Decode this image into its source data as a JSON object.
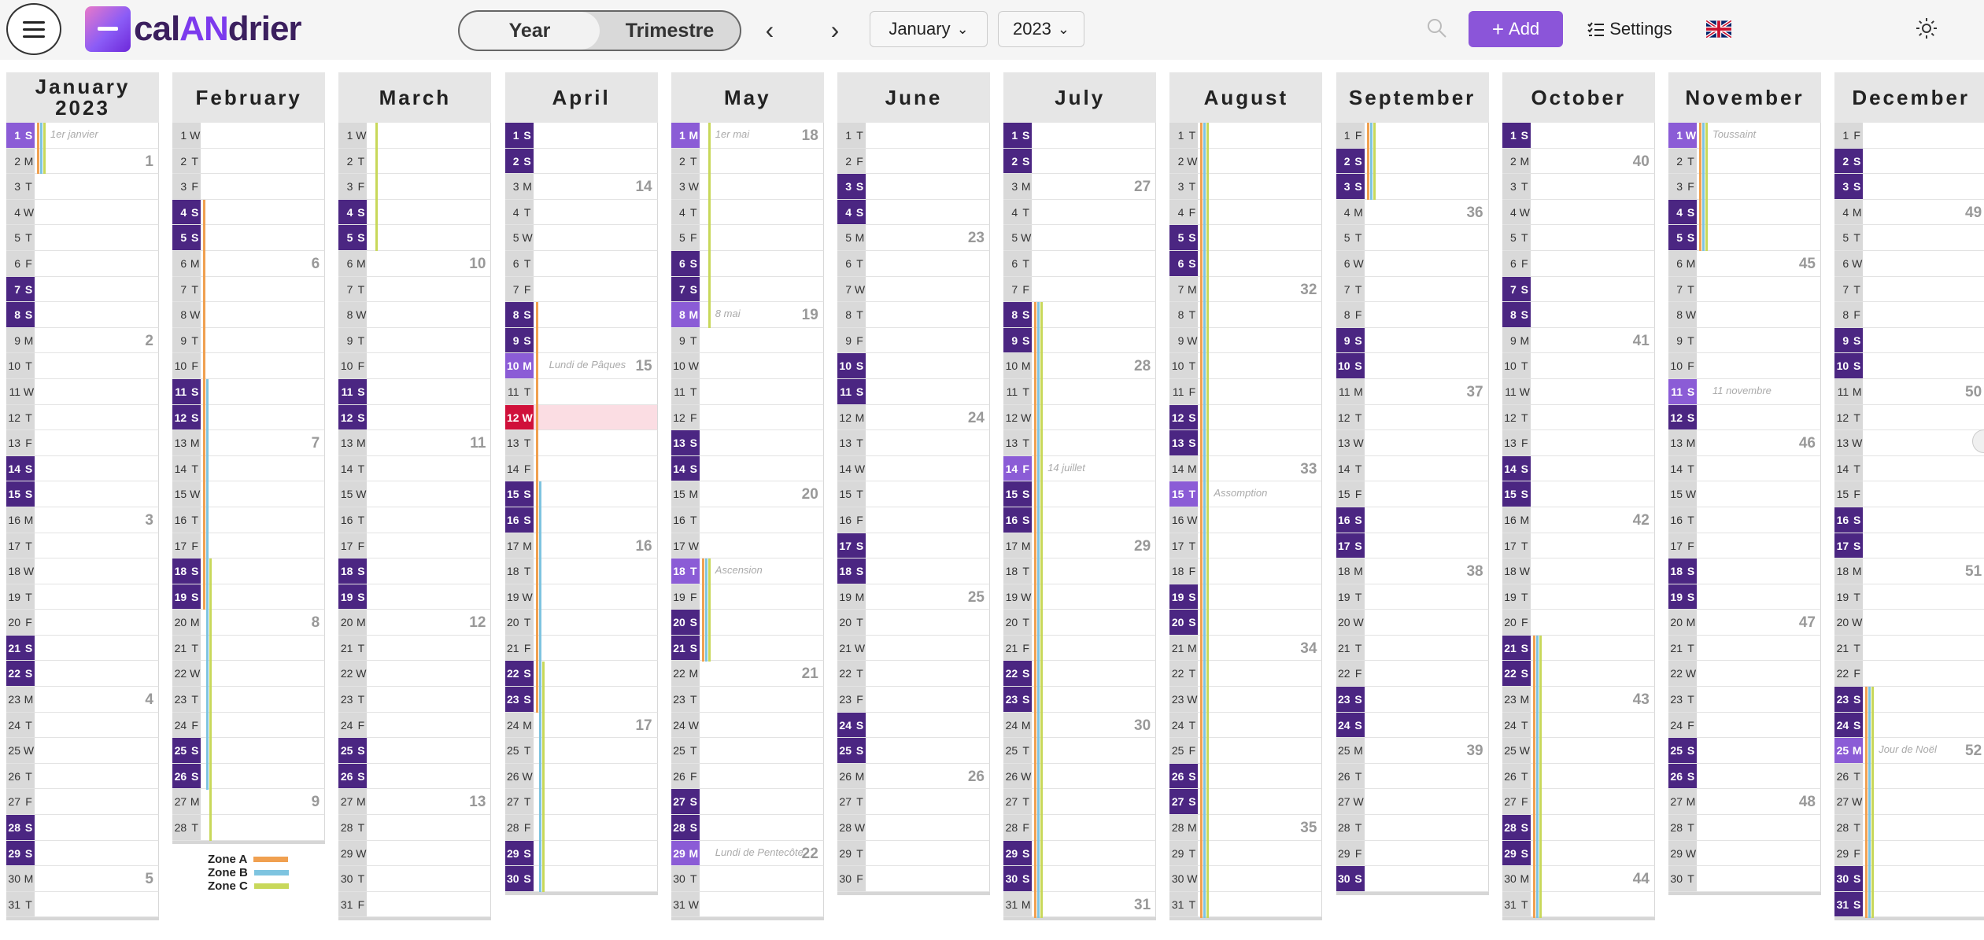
{
  "header": {
    "logo": {
      "part1": "cal",
      "part2": "AN",
      "part3": "drier"
    },
    "view_toggle": {
      "year": "Year",
      "quarter": "Trimestre",
      "active": "year"
    },
    "prev_arrow": "‹",
    "next_arrow": "›",
    "month_select": "January",
    "year_select": "2023",
    "add_label": "Add",
    "settings_label": "Settings",
    "language": "uk-flag-icon",
    "theme": "sun-icon"
  },
  "colors": {
    "weekend": "#4b2682",
    "holiday": "#8b5cd6",
    "today": "#d0103a",
    "zone_a": "#f0a050",
    "zone_b": "#7ec4e0",
    "zone_c": "#c8d85a"
  },
  "calendar": {
    "year": 2023,
    "today": {
      "month": 4,
      "day": 12
    },
    "months": [
      {
        "name": "January",
        "subtitle": "2023",
        "first_dow": 0,
        "days": 31
      },
      {
        "name": "February",
        "subtitle": "",
        "first_dow": 3,
        "days": 28
      },
      {
        "name": "March",
        "subtitle": "",
        "first_dow": 3,
        "days": 31
      },
      {
        "name": "April",
        "subtitle": "",
        "first_dow": 6,
        "days": 30
      },
      {
        "name": "May",
        "subtitle": "",
        "first_dow": 1,
        "days": 31
      },
      {
        "name": "June",
        "subtitle": "",
        "first_dow": 4,
        "days": 30
      },
      {
        "name": "July",
        "subtitle": "",
        "first_dow": 6,
        "days": 31
      },
      {
        "name": "August",
        "subtitle": "",
        "first_dow": 2,
        "days": 31
      },
      {
        "name": "September",
        "subtitle": "",
        "first_dow": 5,
        "days": 30
      },
      {
        "name": "October",
        "subtitle": "",
        "first_dow": 0,
        "days": 31
      },
      {
        "name": "November",
        "subtitle": "",
        "first_dow": 3,
        "days": 30
      },
      {
        "name": "December",
        "subtitle": "",
        "first_dow": 5,
        "days": 31
      }
    ],
    "day_letters": [
      "S",
      "M",
      "T",
      "W",
      "T",
      "F",
      "S"
    ],
    "holidays": [
      {
        "month": 1,
        "day": 1,
        "name": "1er janvier"
      },
      {
        "month": 4,
        "day": 10,
        "name": "Lundi de Pâques"
      },
      {
        "month": 5,
        "day": 1,
        "name": "1er mai"
      },
      {
        "month": 5,
        "day": 8,
        "name": "8 mai"
      },
      {
        "month": 5,
        "day": 18,
        "name": "Ascension"
      },
      {
        "month": 5,
        "day": 29,
        "name": "Lundi de Pentecôte"
      },
      {
        "month": 7,
        "day": 14,
        "name": "14 juillet"
      },
      {
        "month": 8,
        "day": 15,
        "name": "Assomption"
      },
      {
        "month": 11,
        "day": 1,
        "name": "Toussaint"
      },
      {
        "month": 11,
        "day": 11,
        "name": "11 novembre"
      },
      {
        "month": 12,
        "day": 25,
        "name": "Jour de Noël"
      }
    ],
    "school_holidays": [
      {
        "zone": "A",
        "from": [
          1,
          1
        ],
        "to": [
          1,
          2
        ]
      },
      {
        "zone": "B",
        "from": [
          1,
          1
        ],
        "to": [
          1,
          2
        ]
      },
      {
        "zone": "C",
        "from": [
          1,
          1
        ],
        "to": [
          1,
          2
        ]
      },
      {
        "zone": "A",
        "from": [
          2,
          4
        ],
        "to": [
          2,
          19
        ]
      },
      {
        "zone": "B",
        "from": [
          2,
          11
        ],
        "to": [
          2,
          26
        ]
      },
      {
        "zone": "C",
        "from": [
          2,
          18
        ],
        "to": [
          3,
          5
        ]
      },
      {
        "zone": "A",
        "from": [
          4,
          8
        ],
        "to": [
          4,
          23
        ]
      },
      {
        "zone": "B",
        "from": [
          4,
          15
        ],
        "to": [
          4,
          30
        ]
      },
      {
        "zone": "C",
        "from": [
          4,
          22
        ],
        "to": [
          5,
          8
        ]
      },
      {
        "zone": "A",
        "from": [
          5,
          18
        ],
        "to": [
          5,
          21
        ]
      },
      {
        "zone": "B",
        "from": [
          5,
          18
        ],
        "to": [
          5,
          21
        ]
      },
      {
        "zone": "C",
        "from": [
          5,
          18
        ],
        "to": [
          5,
          21
        ]
      },
      {
        "zone": "A",
        "from": [
          7,
          8
        ],
        "to": [
          9,
          3
        ]
      },
      {
        "zone": "B",
        "from": [
          7,
          8
        ],
        "to": [
          9,
          3
        ]
      },
      {
        "zone": "C",
        "from": [
          7,
          8
        ],
        "to": [
          9,
          3
        ]
      },
      {
        "zone": "A",
        "from": [
          10,
          21
        ],
        "to": [
          11,
          5
        ]
      },
      {
        "zone": "B",
        "from": [
          10,
          21
        ],
        "to": [
          11,
          5
        ]
      },
      {
        "zone": "C",
        "from": [
          10,
          21
        ],
        "to": [
          11,
          5
        ]
      },
      {
        "zone": "A",
        "from": [
          12,
          23
        ],
        "to": [
          12,
          31
        ]
      },
      {
        "zone": "B",
        "from": [
          12,
          23
        ],
        "to": [
          12,
          31
        ]
      },
      {
        "zone": "C",
        "from": [
          12,
          23
        ],
        "to": [
          12,
          31
        ]
      }
    ]
  },
  "legend": [
    {
      "label": "Zone A",
      "color": "#f0a050"
    },
    {
      "label": "Zone B",
      "color": "#7ec4e0"
    },
    {
      "label": "Zone C",
      "color": "#c8d85a"
    }
  ]
}
